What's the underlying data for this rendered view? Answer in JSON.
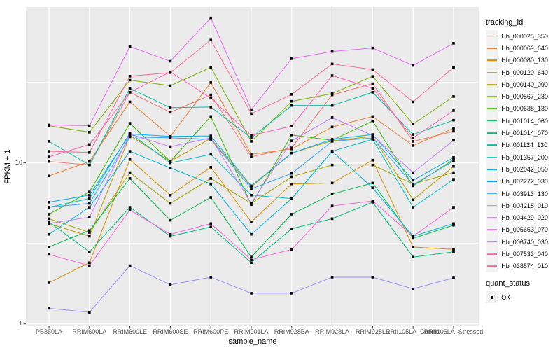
{
  "chart_data": {
    "type": "line",
    "title": "",
    "xlabel": "sample_name",
    "ylabel": "FPKM + 1",
    "y_scale": "log10",
    "ylim": [
      0.95,
      93
    ],
    "y_major_ticks": [
      1,
      10
    ],
    "y_tick_labels": [
      "1",
      "10"
    ],
    "grid": true,
    "panel_bg": "#EBEBEB",
    "gridline_color": "#FFFFFF",
    "marker": {
      "shape": "square",
      "color": "#000000"
    },
    "legend_position": "right",
    "categories": [
      "PB350LA",
      "RRIM600LA",
      "RRIM600LE",
      "RRIM600SE",
      "RRIM600PE",
      "RRIM901LA",
      "RRIM928BA",
      "RRIM928LA",
      "RRIM928LE",
      "RRII105LA_Control",
      "RRII105LA_Stressed"
    ],
    "series": [
      {
        "name": "Hb_000025_350",
        "color": "#F8766D",
        "values": [
          10.2,
          9.7,
          27.4,
          20.6,
          26.4,
          10.9,
          12.4,
          26.4,
          31.0,
          13.6,
          15.7
        ]
      },
      {
        "name": "Hb_000069_640",
        "color": "#EA8331",
        "values": [
          8.3,
          10.2,
          23.9,
          14.6,
          31.5,
          11.3,
          12.2,
          16.7,
          19.4,
          12.8,
          16.4
        ]
      },
      {
        "name": "Hb_000080_130",
        "color": "#D89000",
        "values": [
          1.8,
          2.4,
          10.5,
          6.3,
          9.4,
          4.3,
          7.4,
          7.5,
          10.4,
          3.0,
          2.9
        ]
      },
      {
        "name": "Hb_000120_640",
        "color": "#C09B00",
        "values": [
          4.2,
          3.5,
          14.8,
          10.2,
          14.2,
          7.1,
          11.5,
          13.7,
          14.6,
          5.9,
          9.5
        ]
      },
      {
        "name": "Hb_000140_090",
        "color": "#A3A500",
        "values": [
          4.5,
          3.7,
          8.7,
          5.6,
          8.0,
          5.6,
          8.2,
          9.7,
          9.7,
          7.4,
          8.7
        ]
      },
      {
        "name": "Hb_000567_230",
        "color": "#7CAE00",
        "values": [
          17.0,
          15.5,
          32.6,
          30.1,
          39.1,
          13.6,
          24.1,
          26.9,
          34.4,
          17.4,
          25.8
        ]
      },
      {
        "name": "Hb_000638_130",
        "color": "#39B600",
        "values": [
          4.8,
          6.6,
          17.6,
          10.2,
          19.4,
          5.5,
          14.9,
          13.8,
          18.2,
          7.2,
          10.5
        ]
      },
      {
        "name": "Hb_001014_060",
        "color": "#00BB4E",
        "values": [
          3.0,
          3.8,
          8.0,
          4.4,
          6.1,
          2.6,
          4.8,
          6.4,
          7.5,
          3.4,
          4.1
        ]
      },
      {
        "name": "Hb_001014_070",
        "color": "#00BF7D",
        "values": [
          4.3,
          2.8,
          5.3,
          3.5,
          4.0,
          2.4,
          3.9,
          4.5,
          5.7,
          2.6,
          2.8
        ]
      },
      {
        "name": "Hb_001124_130",
        "color": "#00C1A3",
        "values": [
          13.6,
          9.7,
          29.0,
          22.0,
          22.2,
          14.3,
          22.7,
          22.7,
          27.4,
          15.0,
          18.4
        ]
      },
      {
        "name": "Hb_001357_200",
        "color": "#00BFC4",
        "values": [
          5.3,
          6.0,
          15.3,
          10.0,
          11.3,
          6.3,
          6.0,
          11.8,
          14.0,
          5.3,
          7.9
        ]
      },
      {
        "name": "Hb_002042_050",
        "color": "#00BAE0",
        "values": [
          3.6,
          5.3,
          11.8,
          9.3,
          7.4,
          3.6,
          6.0,
          11.8,
          7.0,
          3.5,
          4.2
        ]
      },
      {
        "name": "Hb_002272_030",
        "color": "#00B0F6",
        "values": [
          5.7,
          6.3,
          15.1,
          14.6,
          14.7,
          7.2,
          11.5,
          14.0,
          15.0,
          7.8,
          10.8
        ]
      },
      {
        "name": "Hb_003913_130",
        "color": "#35A2FF",
        "values": [
          5.3,
          5.6,
          14.5,
          14.3,
          14.0,
          6.9,
          8.6,
          13.6,
          14.3,
          7.3,
          10.3
        ]
      },
      {
        "name": "Hb_004218_010",
        "color": "#9590FF",
        "values": [
          1.25,
          1.18,
          2.3,
          1.75,
          1.95,
          1.55,
          1.55,
          1.95,
          1.95,
          1.65,
          1.93
        ]
      },
      {
        "name": "Hb_004429_020",
        "color": "#C77CFF",
        "values": [
          4.2,
          4.6,
          15.1,
          12.6,
          14.3,
          5.6,
          13.7,
          19.1,
          14.8,
          8.7,
          13.8
        ]
      },
      {
        "name": "Hb_005653_070",
        "color": "#E76BF3",
        "values": [
          17.2,
          17.0,
          52.7,
          42.7,
          79.3,
          21.4,
          44.3,
          49.1,
          51.6,
          40.2,
          55.2
        ]
      },
      {
        "name": "Hb_006740_030",
        "color": "#FA62DB",
        "values": [
          2.7,
          2.3,
          5.1,
          3.6,
          4.2,
          2.5,
          2.9,
          5.4,
          5.8,
          3.5,
          5.3
        ]
      },
      {
        "name": "Hb_007533_040",
        "color": "#FF62BC",
        "values": [
          10.9,
          13.0,
          27.4,
          36.7,
          25.2,
          14.8,
          16.9,
          34.8,
          29.0,
          14.3,
          21.1
        ]
      },
      {
        "name": "Hb_038574_010",
        "color": "#FF6A98",
        "values": [
          11.8,
          11.6,
          34.5,
          36.3,
          57.8,
          20.2,
          26.6,
          41.1,
          37.9,
          23.9,
          39.1
        ]
      }
    ],
    "legend": {
      "color_title": "tracking_id",
      "shape_title": "quant_status",
      "shape_items": [
        {
          "label": "OK",
          "marker": "black-square"
        }
      ]
    }
  }
}
